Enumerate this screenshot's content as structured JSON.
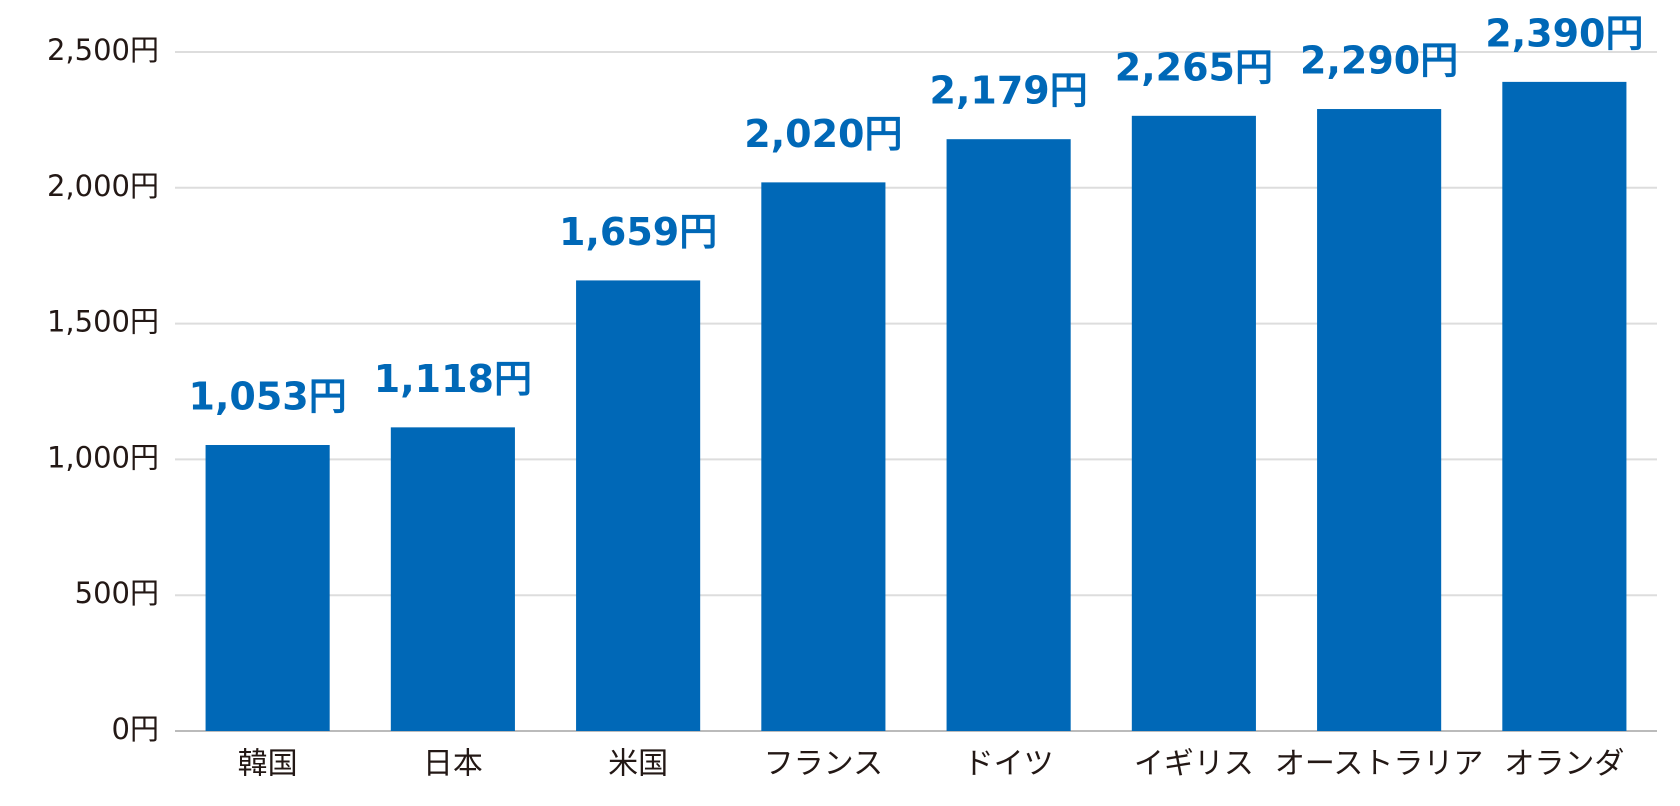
{
  "chart_data": {
    "type": "bar",
    "categories": [
      "韓国",
      "日本",
      "米国",
      "フランス",
      "ドイツ",
      "イギリス",
      "オーストラリア",
      "オランダ"
    ],
    "values": [
      1053,
      1118,
      1659,
      2020,
      2179,
      2265,
      2290,
      2390
    ],
    "value_labels": [
      "1,053円",
      "1,118円",
      "1,659円",
      "2,020円",
      "2,179円",
      "2,265円",
      "2,290円",
      "2,390円"
    ],
    "color": "#0068b7",
    "ylim": [
      0,
      2500
    ],
    "yticks": [
      {
        "value": 0,
        "label": "0円"
      },
      {
        "value": 500,
        "label": "500円"
      },
      {
        "value": 1000,
        "label": "1,000円"
      },
      {
        "value": 1500,
        "label": "1,500円"
      },
      {
        "value": 2000,
        "label": "2,000円"
      },
      {
        "value": 2500,
        "label": "2,500円"
      }
    ],
    "grid": true
  }
}
